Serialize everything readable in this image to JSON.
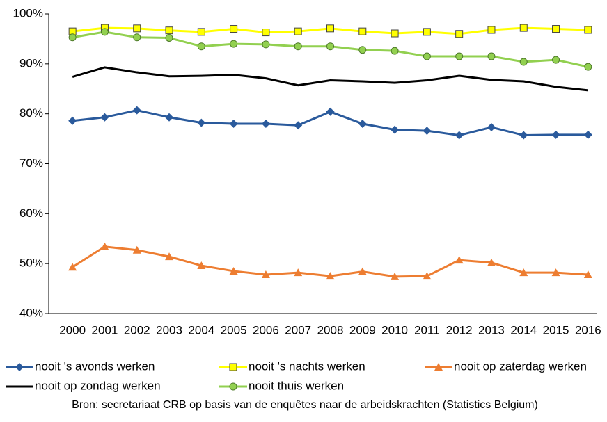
{
  "chart_data": {
    "type": "line",
    "categories": [
      "2000",
      "2001",
      "2002",
      "2003",
      "2004",
      "2005",
      "2006",
      "2007",
      "2008",
      "2009",
      "2010",
      "2011",
      "2012",
      "2013",
      "2014",
      "2015",
      "2016"
    ],
    "series": [
      {
        "name": "nooit 's avonds werken",
        "color": "#2a5a9c",
        "marker": "diamond",
        "values": [
          78.6,
          79.3,
          80.7,
          79.3,
          78.2,
          78.0,
          78.0,
          77.7,
          80.4,
          78.0,
          76.8,
          76.6,
          75.7,
          77.3,
          75.7,
          75.8,
          75.8
        ]
      },
      {
        "name": "nooit 's nachts werken",
        "color": "#ffff00",
        "marker": "square",
        "values": [
          96.5,
          97.2,
          97.1,
          96.7,
          96.4,
          97.0,
          96.3,
          96.5,
          97.1,
          96.5,
          96.1,
          96.4,
          96.0,
          96.8,
          97.2,
          97.0,
          96.8
        ]
      },
      {
        "name": "nooit op zaterdag werken",
        "color": "#ed7d31",
        "marker": "triangle",
        "values": [
          49.3,
          53.4,
          52.7,
          51.4,
          49.6,
          48.5,
          47.8,
          48.2,
          47.5,
          48.4,
          47.4,
          47.5,
          50.7,
          50.2,
          48.2,
          48.2,
          47.8
        ]
      },
      {
        "name": "nooit op zondag werken",
        "color": "#000000",
        "marker": "none",
        "values": [
          87.4,
          89.3,
          88.3,
          87.5,
          87.6,
          87.8,
          87.1,
          85.7,
          86.7,
          86.5,
          86.2,
          86.7,
          87.6,
          86.8,
          86.5,
          85.4,
          84.7
        ]
      },
      {
        "name": "nooit thuis werken",
        "color": "#92d050",
        "marker": "circle",
        "values": [
          95.3,
          96.4,
          95.3,
          95.2,
          93.5,
          94.0,
          93.9,
          93.5,
          93.5,
          92.8,
          92.6,
          91.5,
          91.5,
          91.5,
          90.4,
          90.8,
          89.4
        ]
      }
    ],
    "ylim": [
      40,
      100
    ],
    "yticks": [
      {
        "value": 40,
        "label": "40%"
      },
      {
        "value": 50,
        "label": "50%"
      },
      {
        "value": 60,
        "label": "60%"
      },
      {
        "value": 70,
        "label": "70%"
      },
      {
        "value": 80,
        "label": "80%"
      },
      {
        "value": 90,
        "label": "90%"
      },
      {
        "value": 100,
        "label": "100%"
      }
    ],
    "grid": false,
    "legend": "bottom",
    "source": "Bron: secretariaat CRB op basis van de enquêtes naar de arbeidskrachten (Statistics Belgium)"
  }
}
